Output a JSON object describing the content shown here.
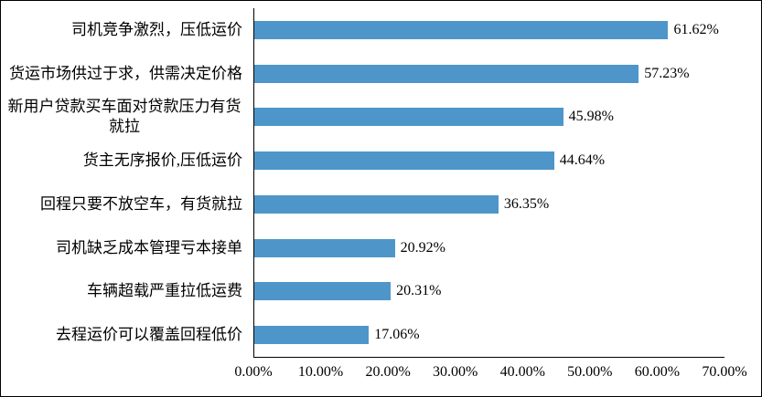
{
  "chart_data": {
    "type": "bar",
    "orientation": "horizontal",
    "title": "",
    "xlabel": "",
    "ylabel": "",
    "categories": [
      "司机竞争激烈，压低运价",
      "货运市场供过于求，供需决定价格",
      "新用户贷款买车面对贷款压力有货就拉",
      "货主无序报价,压低运价",
      "回程只要不放空车，有货就拉",
      "司机缺乏成本管理亏本接单",
      "车辆超载严重拉低运费",
      "去程运价可以覆盖回程低价"
    ],
    "values": [
      61.62,
      57.23,
      45.98,
      44.64,
      36.35,
      20.92,
      20.31,
      17.06
    ],
    "value_labels": [
      "61.62%",
      "57.23%",
      "45.98%",
      "44.64%",
      "36.35%",
      "20.92%",
      "20.31%",
      "17.06%"
    ],
    "xlim": [
      0,
      70
    ],
    "x_ticks": [
      "0.00%",
      "10.00%",
      "20.00%",
      "30.00%",
      "40.00%",
      "50.00%",
      "60.00%",
      "70.00%"
    ],
    "bar_color": "#4E96C9",
    "axis_color": "#000000",
    "grid": false,
    "legend": false
  }
}
